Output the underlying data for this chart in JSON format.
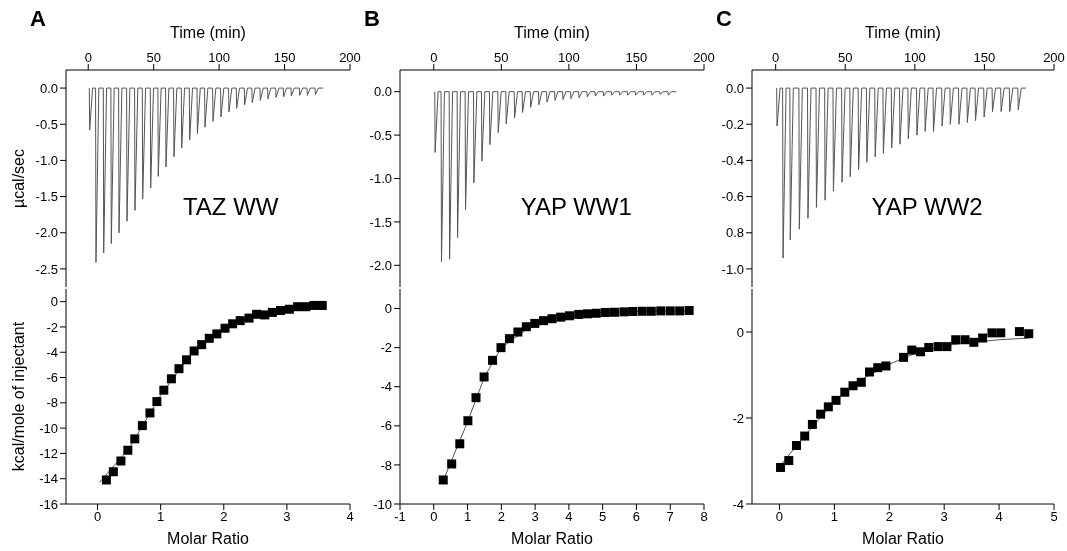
{
  "chart_data": [
    {
      "type": "line",
      "title": "A",
      "xlabel": "Time (min)",
      "ylabel": "µcal/sec",
      "annotations": [
        "TAZ WW"
      ],
      "xlim": [
        -17,
        200
      ],
      "xticks": [
        0,
        50,
        100,
        150,
        200
      ],
      "ylim": [
        -2.75,
        0.25
      ],
      "yticks": [
        {
          "value": 0,
          "label": "0.0"
        },
        -0.5,
        {
          "value": -1,
          "label": "-1.0"
        },
        -1.5,
        {
          "value": -2,
          "label": "-2.0"
        },
        -2.5
      ],
      "series": [
        {
          "color": "#555555",
          "marker": "none",
          "x": [
            0.8,
            1.1,
            3.3,
            5.6,
            5.9,
            8.1,
            11.5,
            11.8,
            14.0,
            17.3,
            17.6,
            19.8,
            23.2,
            23.5,
            25.7,
            29.3,
            29.6,
            31.8,
            35.4,
            35.7,
            37.9,
            41.3,
            41.6,
            43.8,
            47.4,
            47.7,
            49.9,
            53.2,
            53.5,
            55.7,
            59.1,
            59.4,
            61.6,
            65.2,
            65.5,
            67.7,
            71.1,
            71.4,
            73.6,
            77.2,
            77.5,
            79.7,
            83.1,
            83.4,
            85.6,
            88.9,
            89.2,
            91.4,
            95.0,
            95.3,
            97.5,
            101.1,
            101.4,
            103.6,
            107.2,
            107.5,
            109.7,
            113.1,
            113.4,
            115.6,
            119.2,
            119.5,
            121.7,
            125.0,
            125.3,
            127.5,
            131.2,
            131.5,
            133.7,
            137.0,
            137.3,
            139.5,
            143.2,
            143.5,
            145.7,
            149.0,
            149.3,
            151.5,
            154.9,
            155.2,
            157.4,
            161.3,
            161.6,
            163.8,
            167.1,
            167.4,
            169.6,
            173.3,
            173.6,
            175.8,
            179.6
          ],
          "values": [
            0,
            -0.58,
            0,
            0,
            -2.41,
            0,
            0,
            -2.28,
            0,
            0,
            -2.15,
            0,
            0,
            -2.0,
            0,
            0,
            -1.84,
            0,
            0,
            -1.69,
            0,
            0,
            -1.53,
            0,
            0,
            -1.38,
            0,
            0,
            -1.22,
            0,
            0,
            -1.09,
            0,
            0,
            -0.95,
            0,
            0,
            -0.83,
            0,
            0,
            -0.72,
            0,
            0,
            -0.63,
            0,
            0,
            -0.54,
            0,
            0,
            -0.46,
            0,
            0,
            -0.4,
            0,
            0,
            -0.33,
            0,
            0,
            -0.28,
            0,
            0,
            -0.23,
            0,
            0,
            -0.2,
            0,
            0,
            -0.17,
            0,
            0,
            -0.15,
            0,
            0,
            -0.13,
            0,
            0,
            -0.12,
            0,
            0,
            -0.11,
            0,
            0,
            -0.1,
            0,
            0,
            -0.1,
            0,
            0,
            -0.09,
            0,
            0
          ]
        }
      ]
    },
    {
      "type": "line",
      "title": "B",
      "xlabel": "Time (min)",
      "annotations": [
        "YAP WW1"
      ],
      "xlim": [
        -25,
        200
      ],
      "xticks": [
        0,
        50,
        100,
        150,
        200
      ],
      "ylim": [
        -2.25,
        0.25
      ],
      "yticks": [
        {
          "value": 0,
          "label": "0.0"
        },
        -0.5,
        {
          "value": -1,
          "label": "-1.0"
        },
        -1.5,
        {
          "value": -2,
          "label": "-2.0"
        }
      ],
      "series": [
        {
          "color": "#555555",
          "marker": "none",
          "x": [
            0.7,
            1.0,
            3.2,
            5.4,
            5.7,
            7.9,
            11.4,
            11.7,
            13.9,
            17.3,
            17.6,
            19.8,
            23.2,
            23.5,
            25.7,
            29.4,
            29.7,
            31.9,
            35.3,
            35.6,
            37.8,
            41.2,
            41.5,
            43.7,
            47.4,
            47.7,
            49.9,
            53.3,
            53.6,
            55.8,
            59.5,
            59.8,
            62.0,
            65.4,
            65.7,
            67.9,
            71.4,
            71.7,
            73.9,
            77.5,
            77.8,
            80.0,
            83.5,
            83.8,
            86.0,
            89.4,
            89.7,
            91.9,
            95.3,
            95.6,
            97.8,
            101.2,
            101.5,
            103.7,
            107.2,
            107.5,
            109.7,
            113.3,
            113.6,
            115.8,
            119.3,
            119.6,
            121.8,
            125.4,
            125.7,
            127.9,
            131.4,
            131.7,
            133.9,
            137.3,
            137.6,
            139.8,
            143.2,
            143.5,
            145.7,
            149.1,
            149.4,
            151.6,
            155.1,
            155.4,
            157.6,
            161.2,
            161.5,
            163.7,
            167.2,
            167.5,
            169.7,
            173.3,
            173.6,
            175.8,
            179.5
          ],
          "values": [
            0,
            -0.7,
            0,
            0,
            -1.96,
            0,
            0,
            -1.93,
            0,
            0,
            -1.68,
            0,
            0,
            -1.36,
            0,
            0,
            -1.05,
            0,
            0,
            -0.8,
            0,
            0,
            -0.61,
            0,
            0,
            -0.47,
            0,
            0,
            -0.37,
            0,
            0,
            -0.3,
            0,
            0,
            -0.24,
            0,
            0,
            -0.18,
            0,
            0,
            -0.15,
            0,
            0,
            -0.12,
            0,
            0,
            -0.1,
            0,
            0,
            -0.09,
            0,
            0,
            -0.08,
            0,
            0,
            -0.07,
            0,
            0,
            -0.06,
            0,
            0,
            -0.05,
            0,
            0,
            -0.05,
            0,
            0,
            -0.04,
            0,
            0,
            -0.04,
            0,
            0,
            -0.04,
            0,
            0,
            -0.04,
            0,
            0,
            -0.04,
            0,
            0,
            -0.04,
            0,
            0,
            -0.03,
            0,
            0,
            -0.04,
            0,
            0
          ]
        }
      ]
    },
    {
      "type": "line",
      "title": "C",
      "xlabel": "Time (min)",
      "annotations": [
        "YAP WW2"
      ],
      "xlim": [
        -17,
        200
      ],
      "xticks": [
        0,
        50,
        100,
        150,
        200
      ],
      "ylim": [
        -1.1,
        0.1
      ],
      "yticks": [
        {
          "value": 0,
          "label": "0.0"
        },
        -0.2,
        -0.4,
        -0.6,
        {
          "value": -0.8,
          "label": "0.8"
        },
        {
          "value": -1,
          "label": "-1.0"
        }
      ],
      "series": [
        {
          "color": "#555555",
          "marker": "none",
          "x": [
            0.7,
            1.0,
            3.2,
            5.0,
            5.3,
            7.5,
            10.2,
            10.5,
            12.7,
            16.7,
            17.0,
            19.2,
            22.9,
            23.2,
            25.4,
            29.0,
            29.3,
            31.5,
            35.2,
            35.5,
            37.7,
            41.2,
            41.5,
            43.7,
            47.4,
            47.7,
            49.9,
            53.3,
            53.6,
            55.8,
            59.3,
            59.6,
            61.8,
            65.2,
            65.5,
            67.7,
            71.2,
            71.5,
            73.7,
            77.1,
            77.4,
            79.6,
            83.1,
            83.4,
            85.6,
            89.0,
            89.3,
            91.5,
            95.0,
            95.3,
            97.5,
            101.2,
            101.5,
            103.7,
            107.1,
            107.4,
            109.6,
            113.1,
            113.4,
            115.6,
            119.3,
            119.6,
            121.8,
            125.2,
            125.5,
            127.7,
            131.4,
            131.7,
            133.9,
            137.4,
            137.7,
            139.9,
            143.3,
            143.6,
            145.8,
            149.5,
            149.8,
            152.0,
            155.5,
            155.8,
            158.0,
            161.7,
            162.0,
            164.2,
            167.9,
            168.2,
            170.4,
            174.0,
            174.3,
            176.5,
            179.8
          ],
          "values": [
            0,
            -0.21,
            0,
            0,
            -0.94,
            0,
            0,
            -0.84,
            0,
            0,
            -0.78,
            0,
            0,
            -0.72,
            0,
            0,
            -0.66,
            0,
            0,
            -0.62,
            0,
            0,
            -0.57,
            0,
            0,
            -0.52,
            0,
            0,
            -0.49,
            0,
            0,
            -0.45,
            0,
            0,
            -0.41,
            0,
            0,
            -0.38,
            0,
            0,
            -0.36,
            0,
            0,
            -0.33,
            0,
            0,
            -0.31,
            0,
            0,
            -0.28,
            0,
            0,
            -0.26,
            0,
            0,
            -0.24,
            0,
            0,
            -0.24,
            0,
            0,
            -0.21,
            0,
            0,
            -0.2,
            0,
            0,
            -0.2,
            0,
            0,
            -0.19,
            0,
            0,
            -0.18,
            0,
            0,
            -0.16,
            0,
            0,
            -0.13,
            0,
            0,
            -0.13,
            0,
            0,
            -0.13,
            0,
            0,
            -0.12,
            0,
            0
          ]
        }
      ]
    },
    {
      "type": "scatter",
      "xlabel": "Molar Ratio",
      "ylabel": "kcal/mole of injectant",
      "xlim": [
        -0.5,
        4
      ],
      "xticks": [
        0,
        1,
        2,
        3,
        4
      ],
      "ylim": [
        -16,
        1
      ],
      "yticks": [
        0,
        -2,
        -4,
        -6,
        -8,
        -10,
        -12,
        -14,
        -16
      ],
      "series": [
        {
          "type": "line",
          "color": "#555555",
          "marker": "none",
          "x": [
            0.03,
            0.5,
            1,
            1.5,
            2,
            2.5,
            3,
            3.58
          ],
          "values": [
            -14.3,
            -11.6,
            -7.4,
            -4.0,
            -2.1,
            -1.1,
            -0.6,
            -0.35
          ]
        },
        {
          "color": "#000000",
          "marker": "square",
          "x": [
            0.14,
            0.25,
            0.37,
            0.48,
            0.59,
            0.71,
            0.83,
            0.94,
            1.05,
            1.17,
            1.29,
            1.41,
            1.53,
            1.65,
            1.77,
            1.89,
            2.02,
            2.14,
            2.26,
            2.4,
            2.52,
            2.65,
            2.77,
            2.9,
            3.04,
            3.17,
            3.3,
            3.43,
            3.56
          ],
          "values": [
            -14.1,
            -13.45,
            -12.6,
            -11.75,
            -10.85,
            -9.8,
            -8.8,
            -7.9,
            -7.0,
            -6.1,
            -5.3,
            -4.6,
            -3.9,
            -3.4,
            -2.9,
            -2.55,
            -2.1,
            -1.75,
            -1.5,
            -1.3,
            -1.0,
            -1.05,
            -0.85,
            -0.7,
            -0.6,
            -0.4,
            -0.4,
            -0.3,
            -0.3
          ]
        }
      ]
    },
    {
      "type": "scatter",
      "xlabel": "Molar Ratio",
      "xlim": [
        -1,
        8
      ],
      "xticks": [
        -1,
        0,
        1,
        2,
        3,
        4,
        5,
        6,
        7,
        8
      ],
      "ylim": [
        -10,
        1
      ],
      "yticks": [
        0,
        -2,
        -4,
        -6,
        -8,
        -10
      ],
      "series": [
        {
          "type": "line",
          "color": "#555555",
          "marker": "none",
          "x": [
            0.28,
            1,
            1.5,
            2,
            3,
            4,
            5,
            6,
            7.56
          ],
          "values": [
            -8.8,
            -5.8,
            -3.5,
            -2.0,
            -0.76,
            -0.37,
            -0.21,
            -0.15,
            -0.11
          ]
        },
        {
          "color": "#000000",
          "marker": "square",
          "x": [
            0.28,
            0.53,
            0.77,
            1.01,
            1.25,
            1.49,
            1.74,
            1.99,
            2.24,
            2.49,
            2.74,
            2.99,
            3.25,
            3.5,
            3.76,
            4.02,
            4.29,
            4.55,
            4.81,
            5.08,
            5.35,
            5.63,
            5.89,
            6.17,
            6.44,
            6.72,
            7.0,
            7.28,
            7.56
          ],
          "values": [
            -8.77,
            -7.95,
            -6.92,
            -5.74,
            -4.56,
            -3.5,
            -2.65,
            -2.0,
            -1.54,
            -1.2,
            -0.93,
            -0.76,
            -0.62,
            -0.52,
            -0.44,
            -0.37,
            -0.3,
            -0.27,
            -0.24,
            -0.2,
            -0.19,
            -0.17,
            -0.15,
            -0.14,
            -0.14,
            -0.12,
            -0.12,
            -0.12,
            -0.1
          ]
        }
      ]
    },
    {
      "type": "scatter",
      "xlabel": "Molar Ratio",
      "xlim": [
        -0.5,
        5
      ],
      "xticks": [
        0,
        1,
        2,
        3,
        4,
        5
      ],
      "ylim": [
        -4,
        1
      ],
      "yticks": [
        -4,
        -2,
        0
      ],
      "series": [
        {
          "type": "line",
          "color": "#555555",
          "marker": "none",
          "x": [
            0.02,
            0.5,
            1,
            1.5,
            2,
            2.5,
            3,
            3.5,
            4,
            4.54
          ],
          "values": [
            -3.1,
            -2.35,
            -1.62,
            -1.1,
            -0.75,
            -0.48,
            -0.32,
            -0.24,
            -0.18,
            -0.14
          ]
        },
        {
          "color": "#000000",
          "marker": "square",
          "x": [
            0.02,
            0.17,
            0.31,
            0.46,
            0.6,
            0.75,
            0.89,
            1.03,
            1.19,
            1.34,
            1.49,
            1.64,
            1.79,
            1.94,
            2.26,
            2.41,
            2.57,
            2.72,
            2.89,
            3.05,
            3.21,
            3.38,
            3.54,
            3.7,
            3.87,
            4.03,
            4.37,
            4.54
          ],
          "values": [
            -3.15,
            -2.99,
            -2.64,
            -2.42,
            -2.15,
            -1.91,
            -1.74,
            -1.59,
            -1.4,
            -1.25,
            -1.17,
            -0.93,
            -0.83,
            -0.79,
            -0.59,
            -0.42,
            -0.46,
            -0.36,
            -0.34,
            -0.34,
            -0.18,
            -0.18,
            -0.24,
            -0.14,
            -0.02,
            -0.02,
            0.01,
            -0.04
          ]
        }
      ]
    }
  ]
}
